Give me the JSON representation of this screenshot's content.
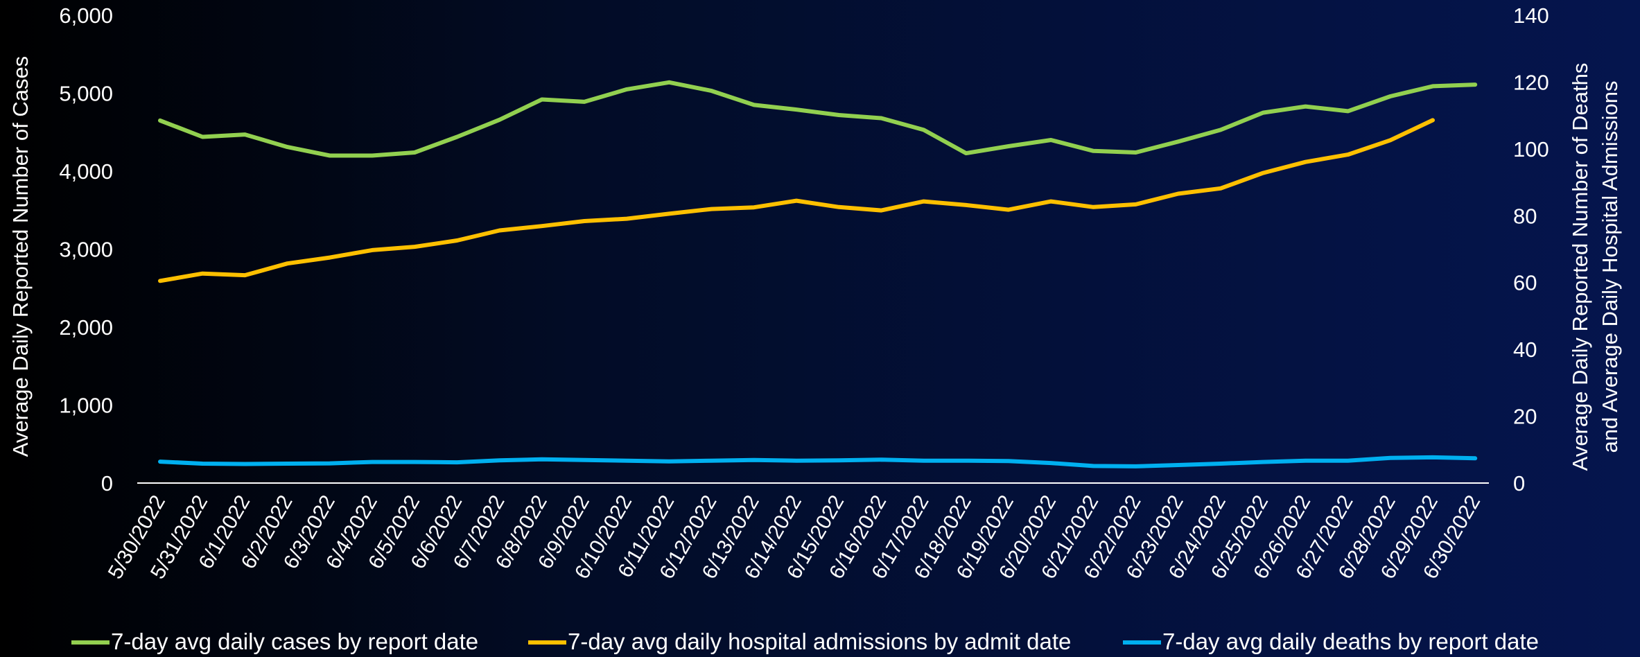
{
  "chart_data": {
    "type": "line",
    "title": "",
    "x": [
      "5/30/2022",
      "5/31/2022",
      "6/1/2022",
      "6/2/2022",
      "6/3/2022",
      "6/4/2022",
      "6/5/2022",
      "6/6/2022",
      "6/7/2022",
      "6/8/2022",
      "6/9/2022",
      "6/10/2022",
      "6/11/2022",
      "6/12/2022",
      "6/13/2022",
      "6/14/2022",
      "6/15/2022",
      "6/16/2022",
      "6/17/2022",
      "6/18/2022",
      "6/19/2022",
      "6/20/2022",
      "6/21/2022",
      "6/22/2022",
      "6/23/2022",
      "6/24/2022",
      "6/25/2022",
      "6/26/2022",
      "6/27/2022",
      "6/28/2022",
      "6/29/2022",
      "6/30/2022"
    ],
    "y_left": {
      "label": "Average Daily Reported Number of Cases",
      "range": [
        0,
        6000
      ],
      "ticks": [
        "0",
        "1,000",
        "2,000",
        "3,000",
        "4,000",
        "5,000",
        "6,000"
      ],
      "tick_values": [
        0,
        1000,
        2000,
        3000,
        4000,
        5000,
        6000
      ]
    },
    "y_right": {
      "label_lines": [
        "Average Daily Reported Number of Deaths",
        "and Average Daily Hospital Admissions"
      ],
      "range": [
        0,
        140
      ],
      "ticks": [
        "0",
        "20",
        "40",
        "60",
        "80",
        "100",
        "120",
        "140"
      ],
      "tick_values": [
        0,
        20,
        40,
        60,
        80,
        100,
        120,
        140
      ]
    },
    "series": [
      {
        "name": "7-day avg daily cases by report date",
        "axis": "left",
        "color": "#92d050",
        "values": [
          4650,
          4440,
          4470,
          4310,
          4200,
          4200,
          4240,
          4440,
          4660,
          4920,
          4890,
          5050,
          5140,
          5030,
          4850,
          4790,
          4720,
          4680,
          4530,
          4230,
          4320,
          4400,
          4260,
          4240,
          4380,
          4530,
          4750,
          4830,
          4770,
          4960,
          5090,
          5110
        ]
      },
      {
        "name": "7-day avg daily hospital admissions by admit date",
        "axis": "right",
        "color": "#ffc000",
        "values": [
          60.5,
          62.7,
          62.2,
          65.7,
          67.5,
          69.7,
          70.7,
          72.6,
          75.6,
          76.9,
          78.4,
          79.1,
          80.6,
          82.0,
          82.5,
          84.5,
          82.6,
          81.6,
          84.3,
          83.2,
          81.8,
          84.3,
          82.6,
          83.4,
          86.6,
          88.2,
          92.8,
          96.1,
          98.3,
          102.6,
          108.6,
          null
        ]
      },
      {
        "name": "7-day avg daily deaths by report date",
        "axis": "right",
        "color": "#00b0f0",
        "values": [
          6.4,
          5.8,
          5.7,
          5.8,
          5.9,
          6.3,
          6.3,
          6.2,
          6.8,
          7.1,
          6.9,
          6.7,
          6.5,
          6.7,
          6.9,
          6.7,
          6.8,
          7.0,
          6.7,
          6.7,
          6.6,
          6.0,
          5.1,
          5.0,
          5.4,
          5.8,
          6.3,
          6.7,
          6.7,
          7.5,
          7.7,
          7.4
        ]
      }
    ],
    "grid": false,
    "legend_position": "bottom"
  }
}
